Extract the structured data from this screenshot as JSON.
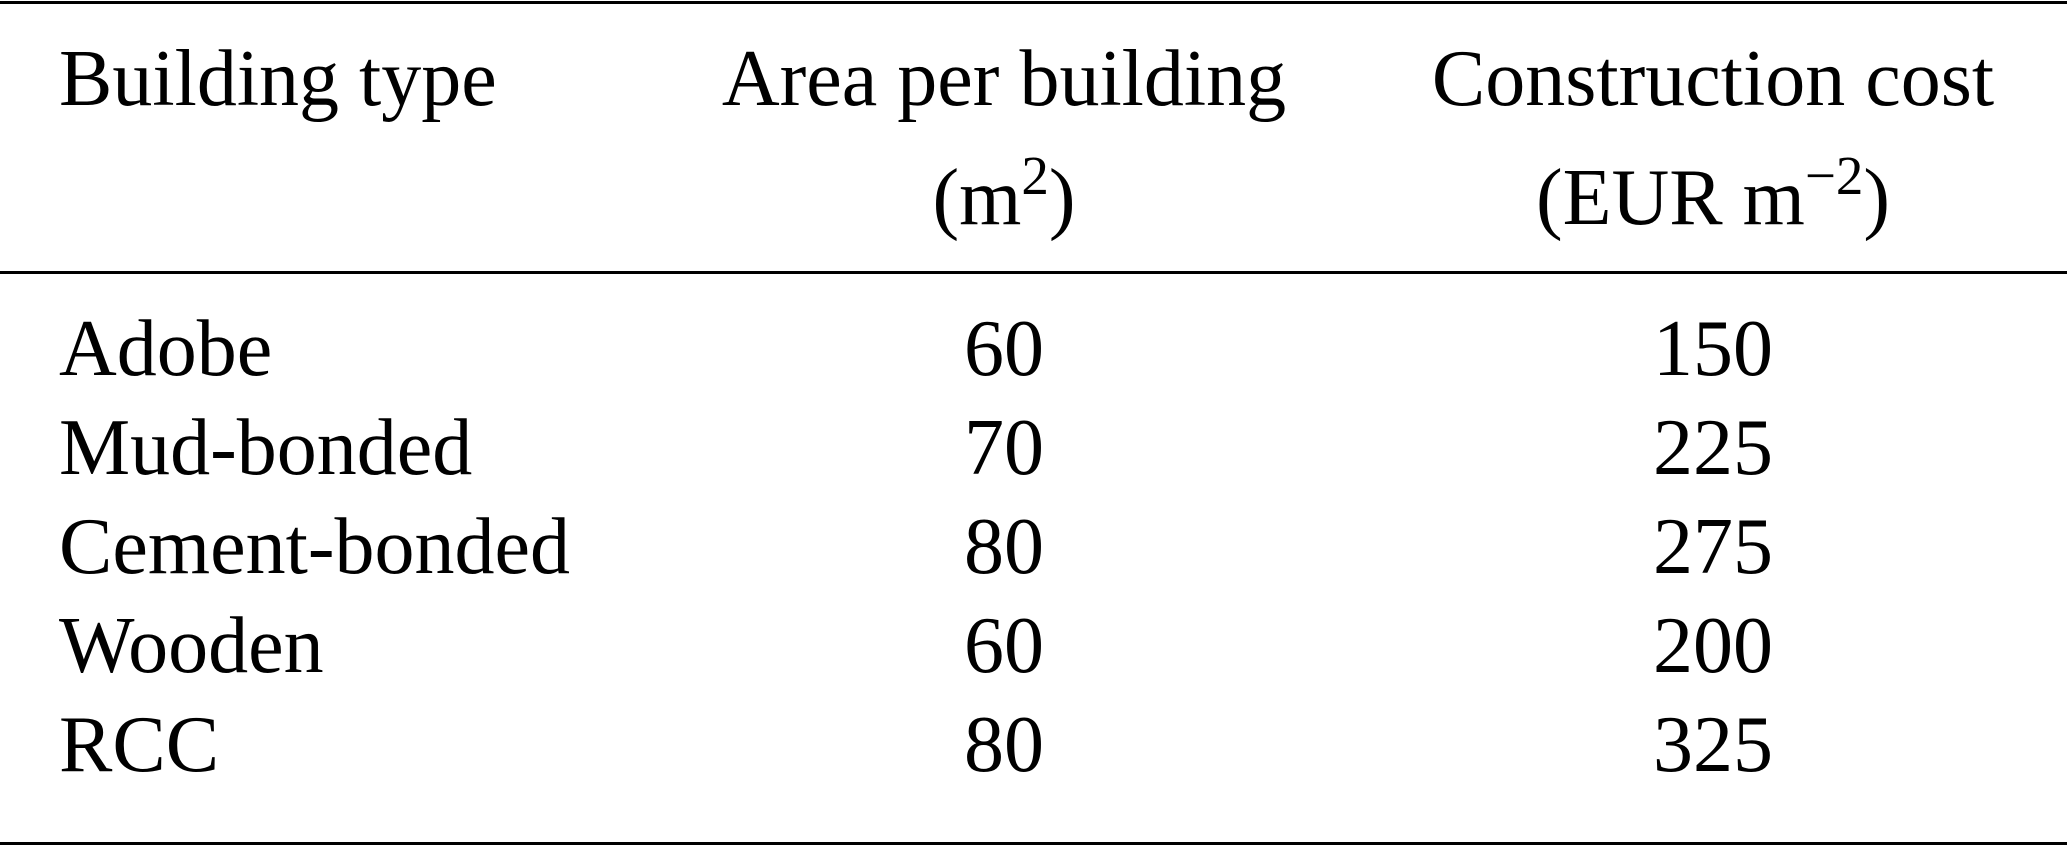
{
  "table": {
    "columns": [
      {
        "line1": "Building type",
        "line2": ""
      },
      {
        "line1": "Area per building",
        "line2_pre": "(m",
        "line2_sup": "2",
        "line2_post": ")"
      },
      {
        "line1": "Construction cost",
        "line2_pre": "(EUR m",
        "line2_sup": "−2",
        "line2_post": ")"
      }
    ],
    "rows": [
      [
        "Adobe",
        "60",
        "150"
      ],
      [
        "Mud-bonded",
        "70",
        "225"
      ],
      [
        "Cement-bonded",
        "80",
        "275"
      ],
      [
        "Wooden",
        "60",
        "200"
      ],
      [
        "RCC",
        "80",
        "325"
      ]
    ]
  }
}
